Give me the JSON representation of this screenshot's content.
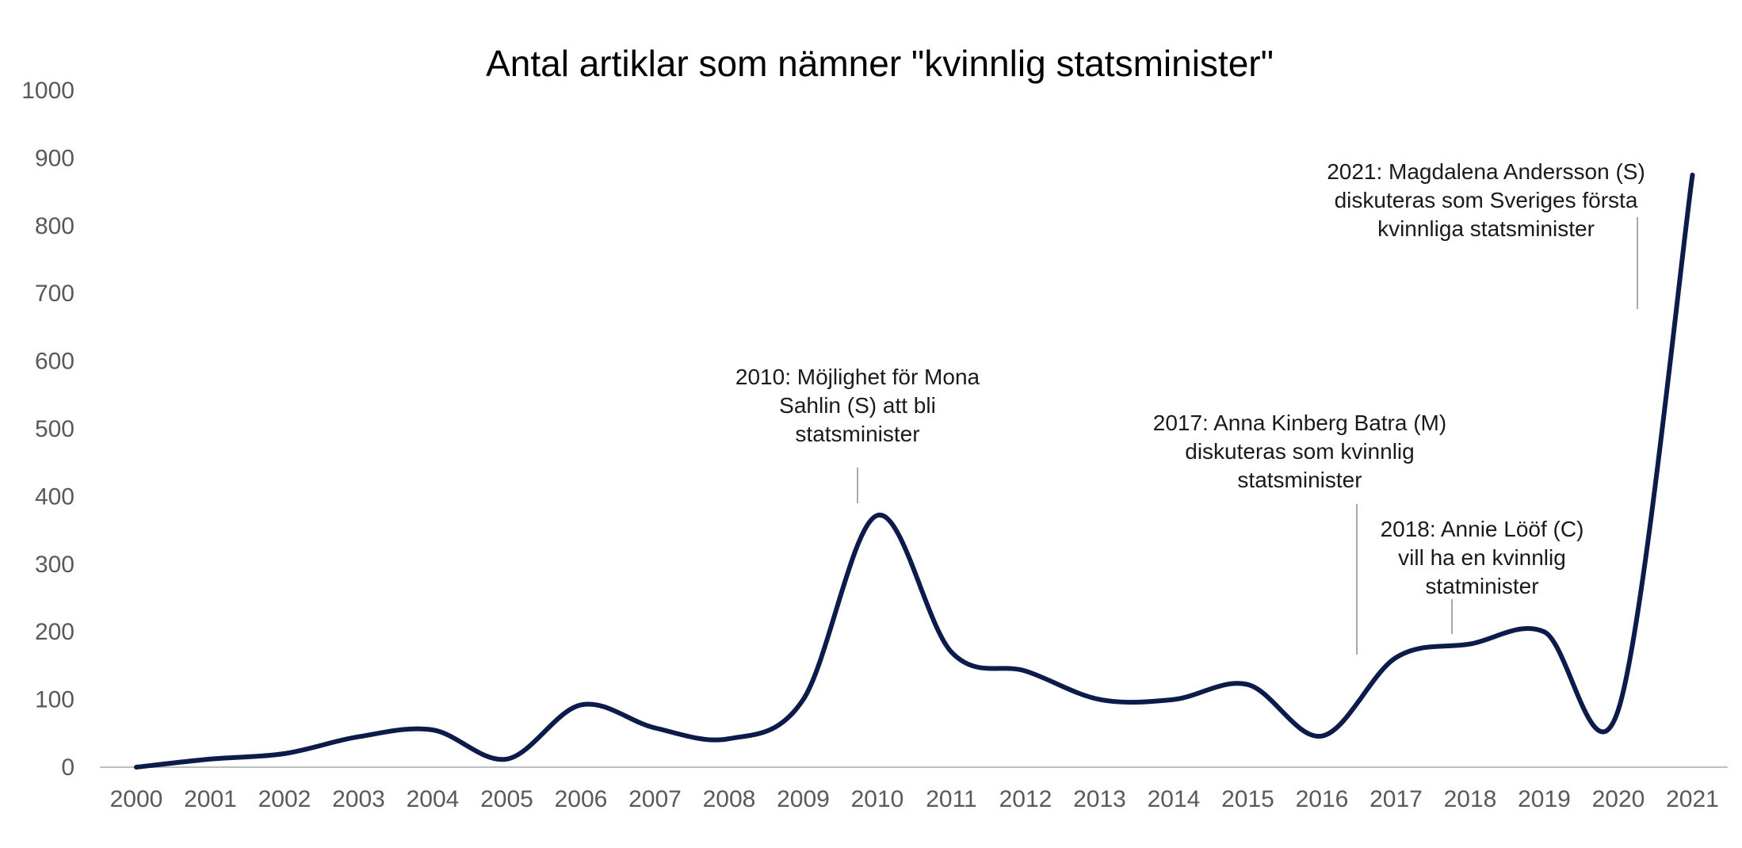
{
  "chart_data": {
    "type": "line",
    "title": "Antal artiklar som nämner \"kvinnlig statsminister\"",
    "xlabel": "",
    "ylabel": "",
    "ylim": [
      0,
      1000
    ],
    "yticks": [
      0,
      100,
      200,
      300,
      400,
      500,
      600,
      700,
      800,
      900,
      1000
    ],
    "x": [
      "2000",
      "2001",
      "2002",
      "2003",
      "2004",
      "2005",
      "2006",
      "2007",
      "2008",
      "2009",
      "2010",
      "2011",
      "2012",
      "2013",
      "2014",
      "2015",
      "2016",
      "2017",
      "2018",
      "2019",
      "2020",
      "2021"
    ],
    "series": [
      {
        "color": "#0d1b4b",
        "values": [
          0,
          12,
          20,
          45,
          55,
          12,
          92,
          58,
          42,
          100,
          372,
          170,
          142,
          100,
          100,
          122,
          46,
          162,
          182,
          200,
          85,
          875
        ]
      }
    ],
    "grid": false,
    "legend": "none",
    "annotations": [
      {
        "x": "2010",
        "lines": [
          "2010: Möjlighet för Mona",
          "Sahlin (S) att bli",
          "statsminister"
        ]
      },
      {
        "x": "2017",
        "lines": [
          "2017: Anna Kinberg Batra (M)",
          "diskuteras som kvinnlig",
          "statsminister"
        ]
      },
      {
        "x": "2018",
        "lines": [
          "2018: Annie Lööf (C)",
          "vill ha en kvinnlig",
          "statminister"
        ]
      },
      {
        "x": "2021",
        "lines": [
          "2021: Magdalena Andersson (S)",
          "diskuteras som Sveriges första",
          "kvinnliga statsminister"
        ]
      }
    ]
  }
}
